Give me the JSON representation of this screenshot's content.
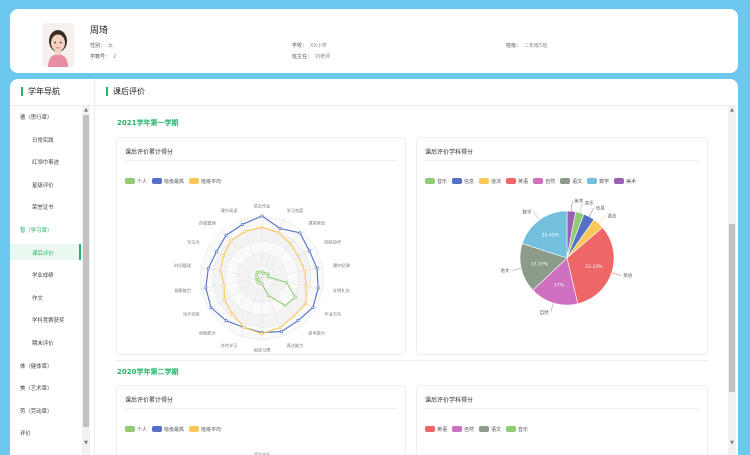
{
  "profile": {
    "name": "周琦",
    "gender_label": "性别：",
    "gender": "女",
    "student_no_label": "学籍号：",
    "student_no": "2",
    "school_label": "学校：",
    "school": "XX小学",
    "head_teacher_label": "班主任：",
    "head_teacher": "刘老师",
    "class_label": "班级：",
    "class": "二年级5班"
  },
  "nav": {
    "title": "学年导航",
    "items": [
      {
        "label": "德（思行章）",
        "type": "group",
        "chevron": "⌄"
      },
      {
        "label": "日常实践",
        "type": "sub"
      },
      {
        "label": "红领巾事迹",
        "type": "sub"
      },
      {
        "label": "星级评价",
        "type": "sub"
      },
      {
        "label": "荣誉证书",
        "type": "sub"
      },
      {
        "label": "智（学习章）",
        "type": "group",
        "chevron": "⌃",
        "active": true
      },
      {
        "label": "课后评价",
        "type": "sub",
        "selected": true
      },
      {
        "label": "学业成绩",
        "type": "sub"
      },
      {
        "label": "作文",
        "type": "sub"
      },
      {
        "label": "学科竞赛获奖",
        "type": "sub"
      },
      {
        "label": "期末评价",
        "type": "sub"
      },
      {
        "label": "体（健体章）",
        "type": "group",
        "chevron": "⌄"
      },
      {
        "label": "美（艺术章）",
        "type": "group",
        "chevron": "⌄"
      },
      {
        "label": "劳（劳动章）",
        "type": "group",
        "chevron": "⌄"
      },
      {
        "label": "评价",
        "type": "group",
        "chevron": "⌄"
      }
    ]
  },
  "content": {
    "title": "课后评价",
    "semesters": [
      {
        "title": "2021学年第一学期"
      },
      {
        "title": "2020学年第二学期"
      }
    ]
  },
  "cards": {
    "radar_title": "课后评价累计得分",
    "pie_title": "课后评价学科得分",
    "radar_title_2": "课后评价累计得分",
    "pie_title_2": "课后评价学科得分"
  },
  "colors": {
    "accent": "#26b36b",
    "green": "#91cc75",
    "blue": "#5470c6",
    "yellow": "#fac858",
    "red": "#ee6666",
    "teal": "#73c0de",
    "purple": "#9a60b4",
    "grey": "#8d9b8a",
    "magenta": "#cf6fbf",
    "pink": "#e05f9b"
  },
  "chart_data": [
    {
      "type": "radar",
      "title": "课后评价累计得分",
      "axes": [
        "语文作业",
        "学习态度",
        "课堂表现",
        "团结协作",
        "遵守纪律",
        "文明礼仪",
        "作业书写",
        "思考能力",
        "表达能力",
        "阅读习惯",
        "合作学习",
        "创新能力",
        "动手实践",
        "观察能力",
        "时间管理",
        "专注力",
        "自我管理",
        "课外阅读"
      ],
      "max": 100,
      "series": [
        {
          "name": "个人",
          "values": [
            10,
            8,
            10,
            12,
            10,
            40,
            62,
            58,
            30,
            10,
            8,
            10,
            6,
            10,
            8,
            10,
            12,
            10
          ]
        },
        {
          "name": "班级最高",
          "values": [
            100,
            85,
            95,
            88,
            90,
            92,
            95,
            90,
            92,
            88,
            85,
            90,
            95,
            92,
            88,
            85,
            90,
            92
          ]
        },
        {
          "name": "班级平均",
          "values": [
            82,
            78,
            72,
            68,
            70,
            72,
            82,
            80,
            85,
            90,
            85,
            75,
            70,
            62,
            68,
            72,
            78,
            80
          ]
        }
      ]
    },
    {
      "type": "pie",
      "title": "课后评价学科得分",
      "series_names": [
        "音乐",
        "信息",
        "道法",
        "英语",
        "自然",
        "语文",
        "数学",
        "美术"
      ],
      "labels": [
        "美术",
        "音乐",
        "信息",
        "道法",
        "英语",
        "自然",
        "语文",
        "数学"
      ],
      "values": [
        3,
        3,
        4,
        4,
        33.33,
        17,
        17.37,
        20.45
      ],
      "slice_labels": [
        "",
        "",
        "",
        "",
        "33.33%",
        "17%",
        "17.37%",
        "20.45%"
      ]
    },
    {
      "type": "radar",
      "title": "课后评价累计得分",
      "series_names": [
        "个人",
        "班级最高",
        "班级平均"
      ],
      "axes": [
        "语文作业"
      ]
    },
    {
      "type": "pie",
      "title": "课后评价学科得分",
      "series_names": [
        "英语",
        "自然",
        "语文",
        "音乐"
      ]
    }
  ]
}
